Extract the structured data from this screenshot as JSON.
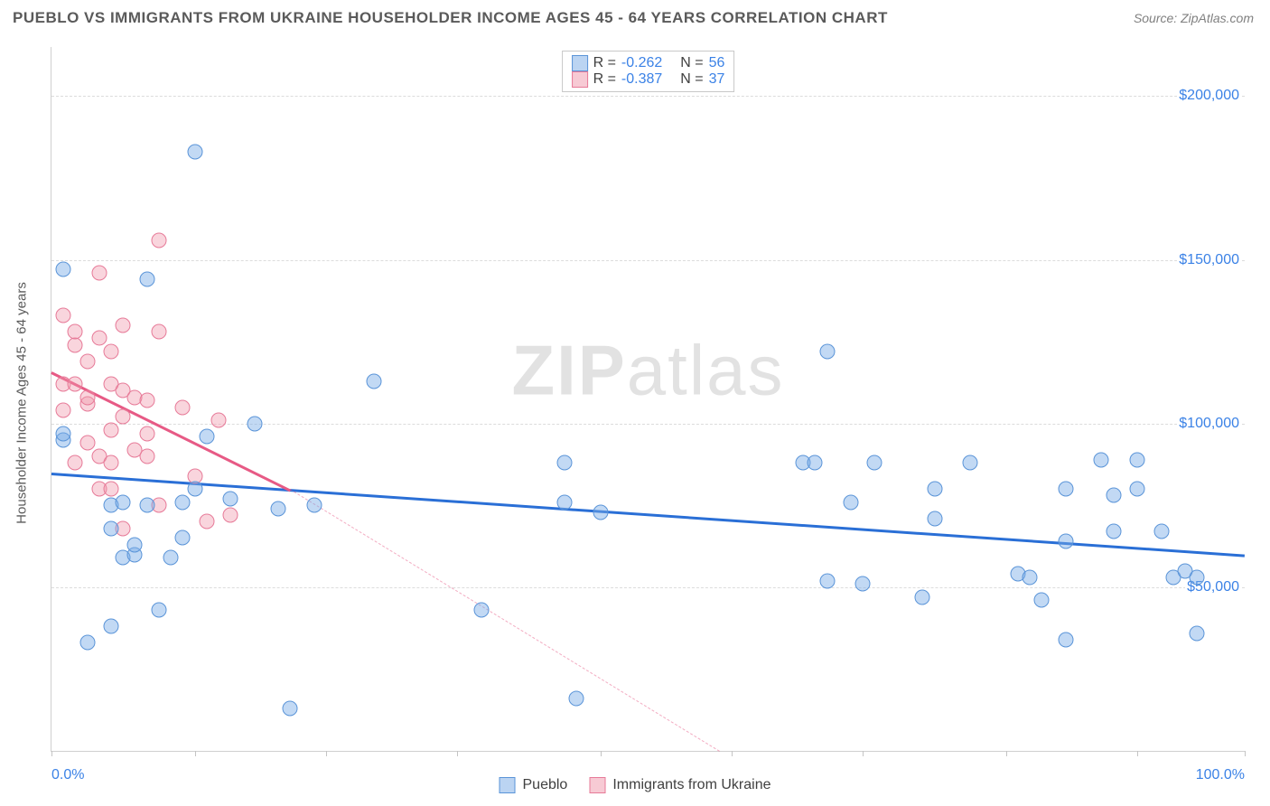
{
  "header": {
    "title": "PUEBLO VS IMMIGRANTS FROM UKRAINE HOUSEHOLDER INCOME AGES 45 - 64 YEARS CORRELATION CHART",
    "source": "Source: ZipAtlas.com"
  },
  "watermark": {
    "prefix": "ZIP",
    "suffix": "atlas"
  },
  "chart": {
    "type": "scatter",
    "y_axis_title": "Householder Income Ages 45 - 64 years",
    "xlim": [
      0,
      100
    ],
    "ylim": [
      0,
      215000
    ],
    "x_ticks": [
      0,
      12,
      23,
      34,
      46,
      57,
      68,
      80,
      91,
      100
    ],
    "x_tick_labels": {
      "start": "0.0%",
      "end": "100.0%"
    },
    "y_gridlines": [
      50000,
      100000,
      150000,
      200000
    ],
    "y_tick_labels": [
      "$50,000",
      "$100,000",
      "$150,000",
      "$200,000"
    ],
    "grid_color": "#dcdcdc",
    "axis_color": "#d0d0d0",
    "label_color": "#3b82e6",
    "series": {
      "blue": {
        "label": "Pueblo",
        "R": "-0.262",
        "N": "56",
        "fill": "rgba(120,170,230,0.45)",
        "stroke": "#5a94d8",
        "line_color": "#2a6fd6",
        "trend": {
          "x1": 0,
          "y1": 85000,
          "x2": 100,
          "y2": 60000
        },
        "points": [
          [
            1,
            95000
          ],
          [
            1,
            97000
          ],
          [
            1,
            147000
          ],
          [
            3,
            33000
          ],
          [
            5,
            68000
          ],
          [
            5,
            75000
          ],
          [
            5,
            38000
          ],
          [
            6,
            59000
          ],
          [
            6,
            76000
          ],
          [
            7,
            60000
          ],
          [
            7,
            63000
          ],
          [
            8,
            75000
          ],
          [
            8,
            144000
          ],
          [
            9,
            43000
          ],
          [
            10,
            59000
          ],
          [
            11,
            76000
          ],
          [
            11,
            65000
          ],
          [
            12,
            80000
          ],
          [
            12,
            183000
          ],
          [
            13,
            96000
          ],
          [
            15,
            77000
          ],
          [
            17,
            100000
          ],
          [
            19,
            74000
          ],
          [
            20,
            13000
          ],
          [
            22,
            75000
          ],
          [
            27,
            113000
          ],
          [
            36,
            43000
          ],
          [
            43,
            76000
          ],
          [
            43,
            88000
          ],
          [
            44,
            16000
          ],
          [
            46,
            73000
          ],
          [
            63,
            88000
          ],
          [
            64,
            88000
          ],
          [
            65,
            52000
          ],
          [
            65,
            122000
          ],
          [
            67,
            76000
          ],
          [
            68,
            51000
          ],
          [
            69,
            88000
          ],
          [
            73,
            47000
          ],
          [
            74,
            71000
          ],
          [
            74,
            80000
          ],
          [
            77,
            88000
          ],
          [
            81,
            54000
          ],
          [
            82,
            53000
          ],
          [
            83,
            46000
          ],
          [
            85,
            64000
          ],
          [
            85,
            80000
          ],
          [
            85,
            34000
          ],
          [
            88,
            89000
          ],
          [
            89,
            78000
          ],
          [
            89,
            67000
          ],
          [
            91,
            89000
          ],
          [
            91,
            80000
          ],
          [
            93,
            67000
          ],
          [
            94,
            53000
          ],
          [
            95,
            55000
          ],
          [
            96,
            53000
          ],
          [
            96,
            36000
          ]
        ]
      },
      "pink": {
        "label": "Immigrants from Ukraine",
        "R": "-0.387",
        "N": "37",
        "fill": "rgba(240,150,170,0.4)",
        "stroke": "#e77a98",
        "line_color": "#e75a85",
        "trend_solid": {
          "x1": 0,
          "y1": 116000,
          "x2": 20,
          "y2": 80000
        },
        "trend_dash": {
          "x1": 20,
          "y1": 80000,
          "x2": 56,
          "y2": 0
        },
        "points": [
          [
            1,
            104000
          ],
          [
            1,
            112000
          ],
          [
            1,
            133000
          ],
          [
            2,
            88000
          ],
          [
            2,
            112000
          ],
          [
            2,
            124000
          ],
          [
            2,
            128000
          ],
          [
            3,
            94000
          ],
          [
            3,
            106000
          ],
          [
            3,
            108000
          ],
          [
            3,
            119000
          ],
          [
            4,
            80000
          ],
          [
            4,
            90000
          ],
          [
            4,
            126000
          ],
          [
            4,
            146000
          ],
          [
            5,
            80000
          ],
          [
            5,
            88000
          ],
          [
            5,
            98000
          ],
          [
            5,
            112000
          ],
          [
            5,
            122000
          ],
          [
            6,
            68000
          ],
          [
            6,
            102000
          ],
          [
            6,
            110000
          ],
          [
            6,
            130000
          ],
          [
            7,
            92000
          ],
          [
            7,
            108000
          ],
          [
            8,
            90000
          ],
          [
            8,
            97000
          ],
          [
            8,
            107000
          ],
          [
            9,
            75000
          ],
          [
            9,
            128000
          ],
          [
            9,
            156000
          ],
          [
            11,
            105000
          ],
          [
            12,
            84000
          ],
          [
            13,
            70000
          ],
          [
            14,
            101000
          ],
          [
            15,
            72000
          ]
        ]
      }
    }
  },
  "legend_bottom": {
    "blue_label": "Pueblo",
    "pink_label": "Immigrants from Ukraine"
  },
  "legend_top": {
    "r_label": "R =",
    "n_label": "N ="
  }
}
